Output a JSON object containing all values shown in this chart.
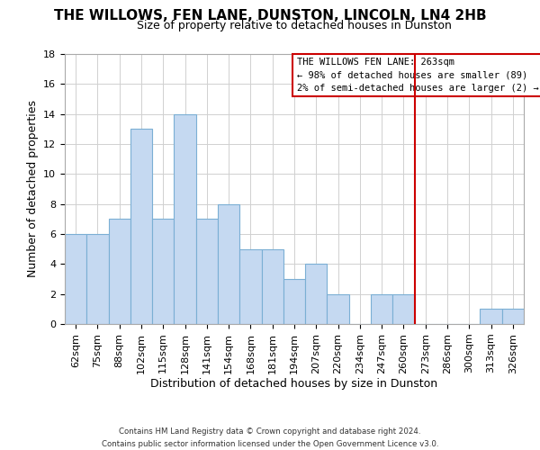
{
  "title": "THE WILLOWS, FEN LANE, DUNSTON, LINCOLN, LN4 2HB",
  "subtitle": "Size of property relative to detached houses in Dunston",
  "xlabel": "Distribution of detached houses by size in Dunston",
  "ylabel": "Number of detached properties",
  "bar_labels": [
    "62sqm",
    "75sqm",
    "88sqm",
    "102sqm",
    "115sqm",
    "128sqm",
    "141sqm",
    "154sqm",
    "168sqm",
    "181sqm",
    "194sqm",
    "207sqm",
    "220sqm",
    "234sqm",
    "247sqm",
    "260sqm",
    "273sqm",
    "286sqm",
    "300sqm",
    "313sqm",
    "326sqm"
  ],
  "bar_values": [
    6,
    6,
    7,
    13,
    7,
    14,
    7,
    8,
    5,
    5,
    3,
    4,
    2,
    0,
    2,
    2,
    0,
    0,
    0,
    1,
    1
  ],
  "bar_color": "#c5d9f1",
  "bar_edge_color": "#7bafd4",
  "vline_color": "#cc0000",
  "vline_bar_index": 15,
  "annotation_title": "THE WILLOWS FEN LANE: 263sqm",
  "annotation_line1": "← 98% of detached houses are smaller (89)",
  "annotation_line2": "2% of semi-detached houses are larger (2) →",
  "annotation_box_color": "#ffffff",
  "annotation_box_edge": "#cc0000",
  "ylim": [
    0,
    18
  ],
  "yticks": [
    0,
    2,
    4,
    6,
    8,
    10,
    12,
    14,
    16,
    18
  ],
  "footer1": "Contains HM Land Registry data © Crown copyright and database right 2024.",
  "footer2": "Contains public sector information licensed under the Open Government Licence v3.0.",
  "background_color": "#ffffff",
  "grid_color": "#d0d0d0",
  "title_fontsize": 11,
  "subtitle_fontsize": 9,
  "xlabel_fontsize": 9,
  "ylabel_fontsize": 9,
  "tick_fontsize": 8
}
